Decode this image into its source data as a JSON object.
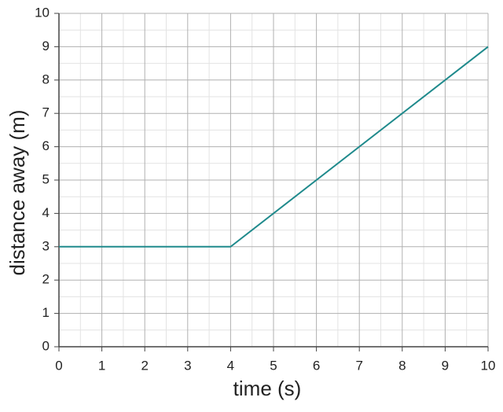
{
  "chart_data": {
    "type": "line",
    "x_label": "time (s)",
    "y_label": "distance away (m)",
    "x": [
      0,
      4,
      10
    ],
    "values": [
      3,
      3,
      9
    ],
    "color": "#1f8a8c",
    "xlim": [
      0,
      10
    ],
    "xticks": [
      0,
      1,
      2,
      3,
      4,
      5,
      6,
      7,
      8,
      9,
      10
    ],
    "ylim": [
      0,
      10
    ],
    "yticks": [
      0,
      1,
      2,
      3,
      4,
      5,
      6,
      7,
      8,
      9,
      10
    ],
    "grid": true
  }
}
